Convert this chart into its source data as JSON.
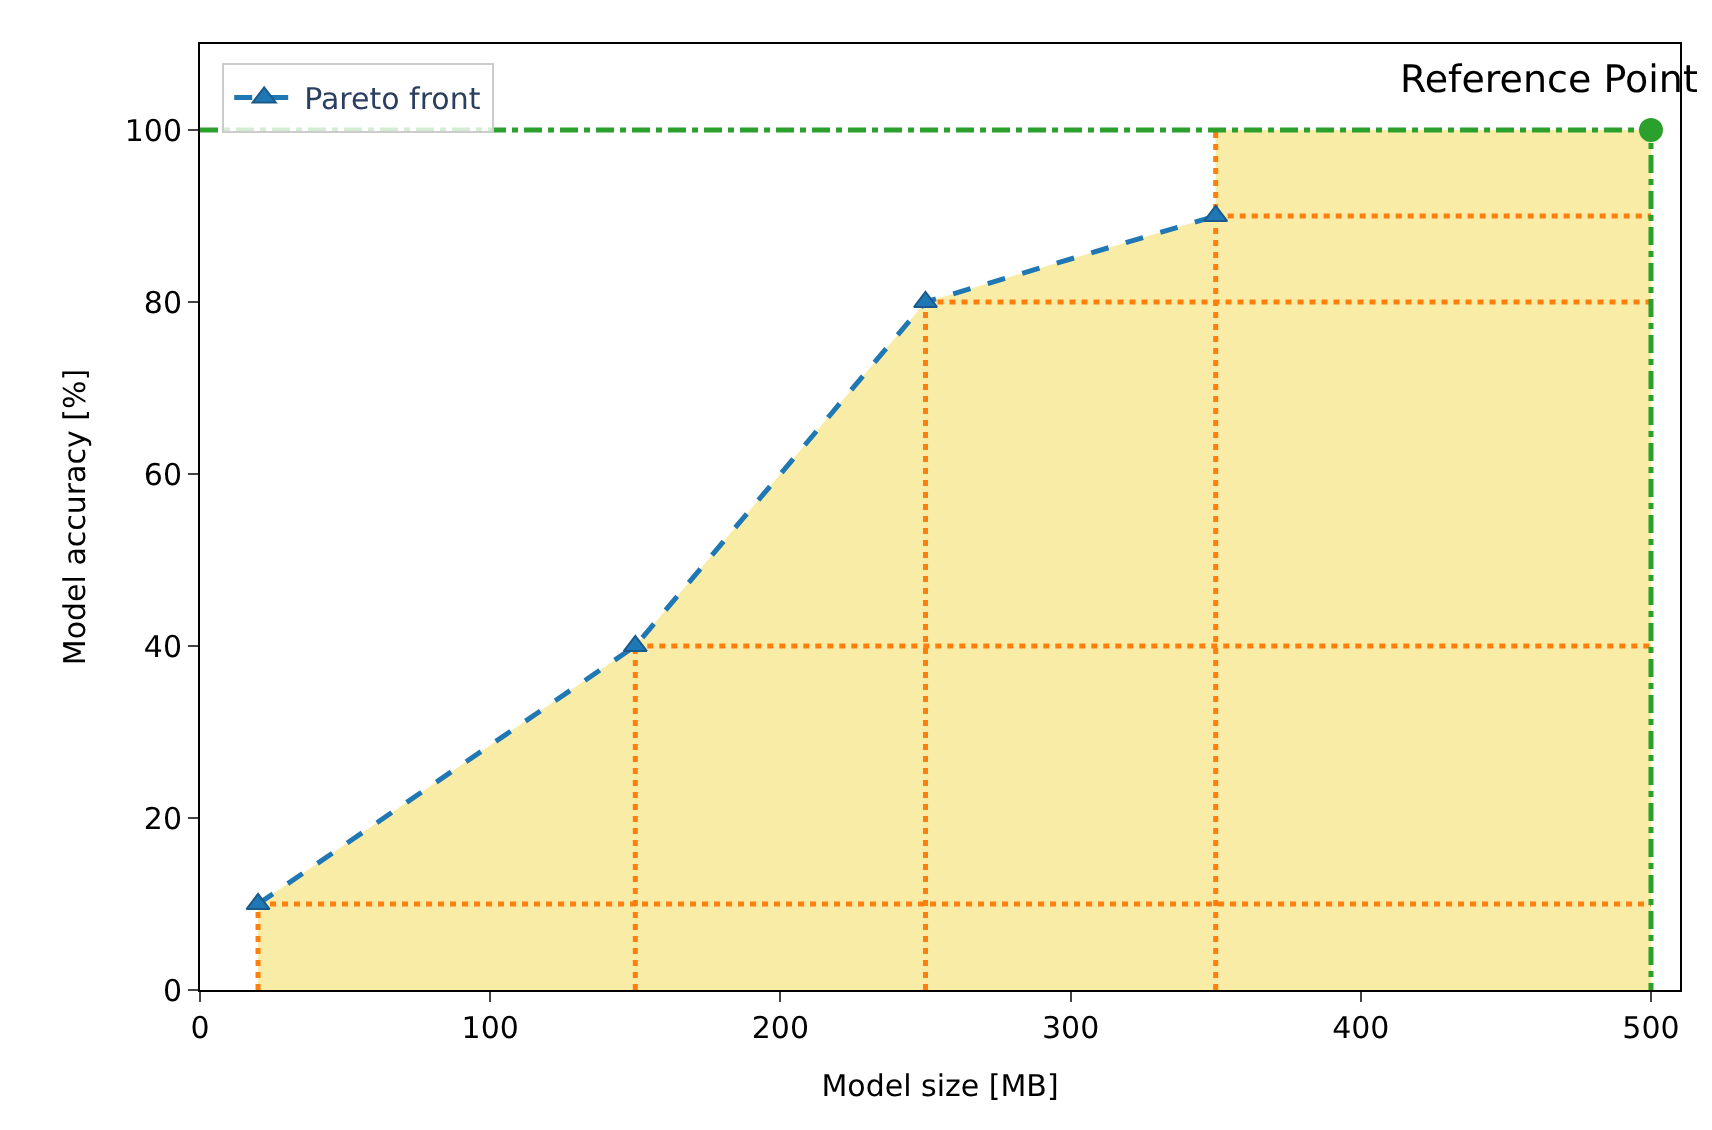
{
  "chart_data": {
    "type": "line",
    "xlabel": "Model size [MB]",
    "ylabel": "Model accuracy [%]",
    "x": [
      20,
      150,
      250,
      350
    ],
    "series": [
      {
        "type": "area",
        "color": "#f9eca6",
        "x": [
          20,
          150,
          250,
          350,
          350,
          500
        ],
        "values": [
          10,
          40,
          80,
          90,
          100,
          100
        ]
      },
      {
        "type": "line",
        "color": "#ff7f0e",
        "line_style": "dotted",
        "marker": "none",
        "x": [
          20,
          500,
          null,
          150,
          500,
          null,
          250,
          500,
          null,
          350,
          500,
          null,
          20,
          20,
          null,
          150,
          150,
          null,
          250,
          250,
          null,
          350,
          350
        ],
        "values": [
          10,
          10,
          null,
          40,
          40,
          null,
          80,
          80,
          null,
          90,
          90,
          null,
          0,
          10,
          null,
          0,
          40,
          null,
          0,
          80,
          null,
          0,
          100
        ]
      },
      {
        "type": "line",
        "color": "#2ca02c",
        "line_style": "dashdot",
        "marker": "none",
        "x": [
          0,
          500,
          500
        ],
        "values": [
          100,
          100,
          0
        ]
      },
      {
        "name": "Pareto front",
        "color": "#1f77b4",
        "line_style": "dashed",
        "marker": "triangle",
        "values": [
          10,
          40,
          80,
          90
        ]
      },
      {
        "type": "scatter",
        "color": "#2ca02c",
        "marker": "circle",
        "x": [
          500
        ],
        "values": [
          100
        ]
      }
    ],
    "annotations": [
      {
        "text": "Reference Point",
        "x": 500,
        "y": 100
      }
    ],
    "xlim": [
      0,
      510
    ],
    "ylim": [
      0,
      110
    ],
    "xticks": [
      0,
      100,
      200,
      300,
      400,
      500
    ],
    "yticks": [
      0,
      20,
      40,
      60,
      80,
      100
    ],
    "legend": "top left"
  }
}
